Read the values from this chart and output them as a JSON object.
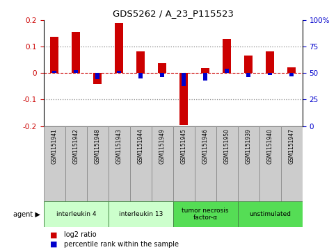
{
  "title": "GDS5262 / A_23_P115523",
  "samples": [
    "GSM1151941",
    "GSM1151942",
    "GSM1151948",
    "GSM1151943",
    "GSM1151944",
    "GSM1151949",
    "GSM1151945",
    "GSM1151946",
    "GSM1151950",
    "GSM1151939",
    "GSM1151940",
    "GSM1151947"
  ],
  "log2_ratio": [
    0.138,
    0.155,
    -0.04,
    0.19,
    0.082,
    0.038,
    -0.195,
    0.018,
    0.13,
    0.065,
    0.082,
    0.022
  ],
  "percentile_rank": [
    52,
    53,
    44,
    52,
    45,
    46,
    38,
    43,
    54,
    46,
    48,
    47
  ],
  "agents": [
    {
      "label": "interleukin 4",
      "start": 0,
      "end": 2,
      "color": "#ccffcc",
      "dark": false
    },
    {
      "label": "interleukin 13",
      "start": 3,
      "end": 5,
      "color": "#ccffcc",
      "dark": false
    },
    {
      "label": "tumor necrosis\nfactor-α",
      "start": 6,
      "end": 8,
      "color": "#55dd55",
      "dark": false
    },
    {
      "label": "unstimulated",
      "start": 9,
      "end": 11,
      "color": "#55dd55",
      "dark": false
    }
  ],
  "ylim_left": [
    -0.2,
    0.2
  ],
  "ylim_right": [
    0,
    100
  ],
  "bar_color_red": "#cc0000",
  "bar_color_blue": "#0000cc",
  "dotted_line_color": "#888888",
  "ref_line_color": "#cc0000",
  "background_color": "#ffffff",
  "plot_bg_color": "#ffffff",
  "yticks_left": [
    -0.2,
    -0.1,
    0.0,
    0.1,
    0.2
  ],
  "yticks_right": [
    0,
    25,
    50,
    75,
    100
  ],
  "ytick_labels_left": [
    "-0.2",
    "-0.1",
    "0",
    "0.1",
    "0.2"
  ],
  "ytick_labels_right": [
    "0",
    "25",
    "50",
    "75",
    "100%"
  ],
  "sample_box_color": "#cccccc",
  "sample_box_edge": "#888888",
  "agent_edge_color": "#448844"
}
